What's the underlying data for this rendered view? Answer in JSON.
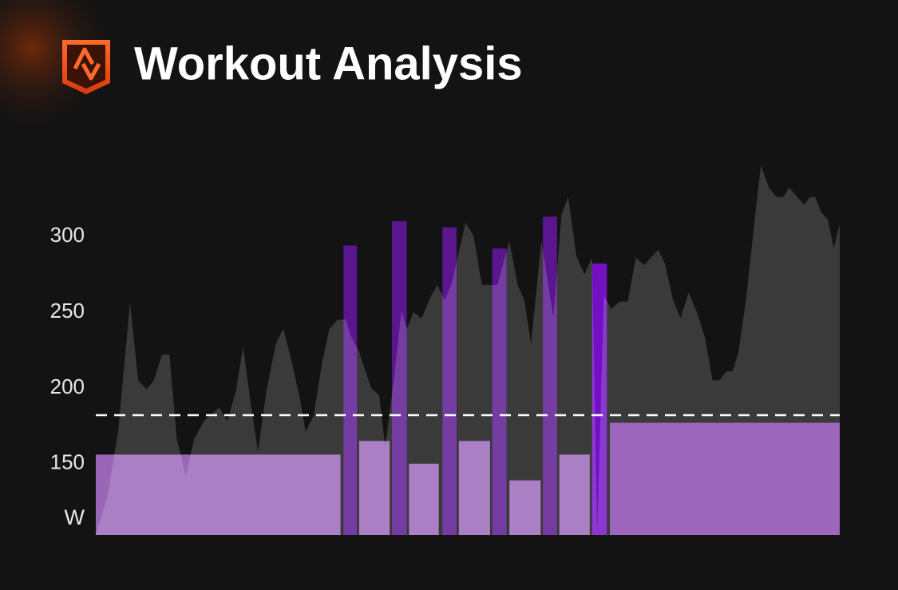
{
  "header": {
    "title": "Workout Analysis"
  },
  "chart_data": {
    "type": "bar",
    "y_label": "W",
    "ylim": [
      103,
      348
    ],
    "yticks": [
      150,
      200,
      250,
      300
    ],
    "xlim": [
      0,
      100
    ],
    "threshold": 182,
    "segments": [
      {
        "start": 0,
        "end": 32.9,
        "value": 156,
        "color": "#9a66b8"
      },
      {
        "start": 33.3,
        "end": 35.1,
        "value": 294,
        "color": "#5a168f"
      },
      {
        "start": 35.4,
        "end": 39.5,
        "value": 165,
        "color": "#9a66b8"
      },
      {
        "start": 39.8,
        "end": 41.8,
        "value": 310,
        "color": "#5a168f"
      },
      {
        "start": 42.1,
        "end": 46.1,
        "value": 150,
        "color": "#9a66b8"
      },
      {
        "start": 46.6,
        "end": 48.5,
        "value": 306,
        "color": "#5a168f"
      },
      {
        "start": 48.8,
        "end": 53.0,
        "value": 165,
        "color": "#9a66b8"
      },
      {
        "start": 53.3,
        "end": 55.2,
        "value": 292,
        "color": "#5a168f"
      },
      {
        "start": 55.6,
        "end": 59.8,
        "value": 139,
        "color": "#9a66b8"
      },
      {
        "start": 60.1,
        "end": 62.0,
        "value": 313,
        "color": "#5a168f"
      },
      {
        "start": 62.3,
        "end": 66.4,
        "value": 156,
        "color": "#9a66b8"
      },
      {
        "start": 66.7,
        "end": 68.7,
        "value": 282,
        "color": "#7410c4"
      },
      {
        "start": 69.1,
        "end": 100,
        "value": 177,
        "color": "#8a48b0"
      }
    ],
    "power": {
      "color": "rgba(255,255,255,0.17)",
      "x": [
        0,
        1.6,
        3.0,
        4.6,
        5.7,
        6.8,
        7.8,
        8.9,
        9.9,
        10.9,
        12.1,
        13.2,
        14.5,
        16.6,
        17.7,
        18.8,
        19.8,
        20.9,
        21.8,
        22.9,
        24.2,
        25.2,
        26.3,
        27.4,
        28.2,
        29.3,
        30.4,
        31.4,
        32.5,
        33.6,
        34.3,
        35.4,
        37.0,
        38.1,
        38.9,
        40.0,
        41.1,
        41.8,
        42.7,
        43.8,
        45.1,
        45.9,
        46.9,
        47.8,
        48.9,
        49.7,
        50.8,
        51.9,
        54.0,
        55.6,
        56.7,
        57.6,
        58.5,
        59.9,
        61.5,
        62.6,
        63.5,
        64.6,
        65.7,
        66.7,
        67.4,
        68.3,
        69.3,
        70.4,
        71.5,
        72.6,
        73.7,
        74.6,
        75.6,
        76.5,
        77.6,
        78.6,
        79.7,
        80.8,
        81.9,
        82.9,
        83.8,
        84.8,
        85.6,
        86.4,
        87.4,
        88.5,
        89.4,
        90.5,
        91.5,
        92.4,
        93.2,
        94.3,
        95.2,
        96.0,
        96.7,
        97.5,
        98.4,
        99.2,
        100
      ],
      "values": [
        103,
        129,
        171,
        256,
        205,
        199,
        205,
        222,
        222,
        166,
        142,
        166,
        178,
        187,
        178,
        197,
        227,
        187,
        158,
        197,
        229,
        239,
        218,
        194,
        171,
        182,
        216,
        239,
        245,
        245,
        234,
        224,
        200,
        195,
        161,
        203,
        251,
        239,
        250,
        246,
        261,
        268,
        258,
        268,
        292,
        309,
        300,
        268,
        268,
        297,
        268,
        258,
        229,
        297,
        247,
        314,
        326,
        287,
        275,
        286,
        105,
        261,
        252,
        257,
        257,
        286,
        281,
        286,
        291,
        282,
        258,
        246,
        263,
        250,
        233,
        205,
        205,
        211,
        211,
        224,
        258,
        308,
        347,
        332,
        326,
        326,
        332,
        326,
        321,
        326,
        326,
        316,
        311,
        292,
        308
      ]
    }
  }
}
